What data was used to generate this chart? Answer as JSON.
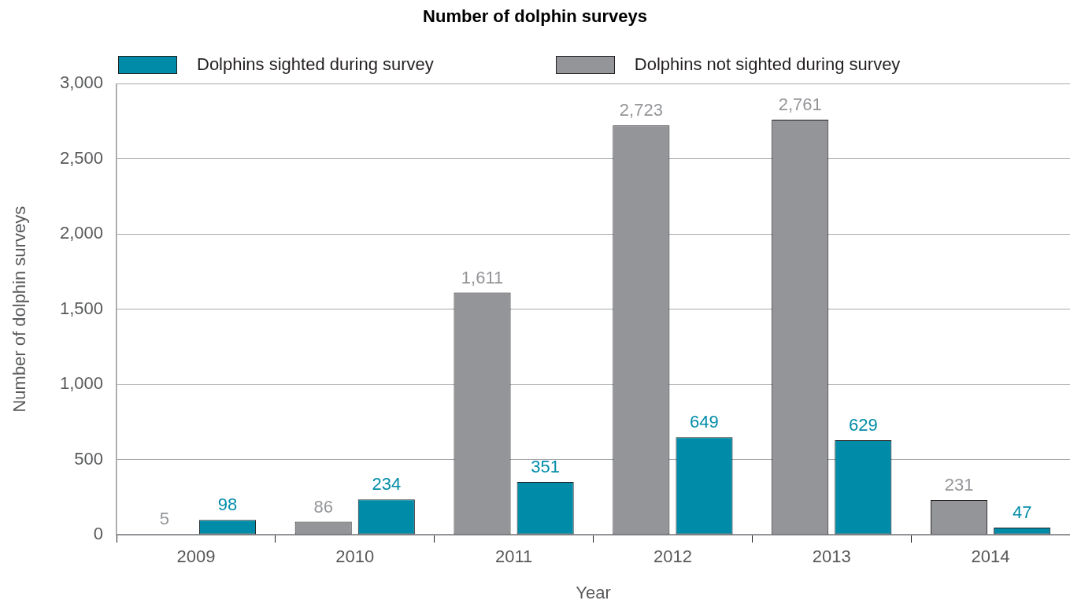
{
  "chart_data": {
    "type": "bar",
    "title": "Number of dolphin surveys",
    "xlabel": "Year",
    "ylabel": "Number of dolphin surveys",
    "categories": [
      "2009",
      "2010",
      "2011",
      "2012",
      "2013",
      "2014"
    ],
    "series": [
      {
        "name": "Dolphins not sighted during survey",
        "color": "#939598",
        "values": [
          5,
          86,
          1611,
          2723,
          2761,
          231
        ],
        "value_labels": [
          "5",
          "86",
          "1,611",
          "2,723",
          "2,761",
          "231"
        ]
      },
      {
        "name": "Dolphins sighted during survey",
        "color": "#008ca8",
        "values": [
          98,
          234,
          351,
          649,
          629,
          47
        ],
        "value_labels": [
          "98",
          "234",
          "351",
          "649",
          "629",
          "47"
        ]
      }
    ],
    "ylim": [
      0,
      3000
    ],
    "yticks": [
      0,
      500,
      {
        "value": 1000,
        "label": "1,000"
      },
      {
        "value": 1500,
        "label": "1,500"
      },
      {
        "value": 2000,
        "label": "2,000"
      },
      {
        "value": 2500,
        "label": "2,500"
      },
      {
        "value": 3000,
        "label": "3,000"
      }
    ],
    "grid": "y",
    "legend": "top"
  }
}
